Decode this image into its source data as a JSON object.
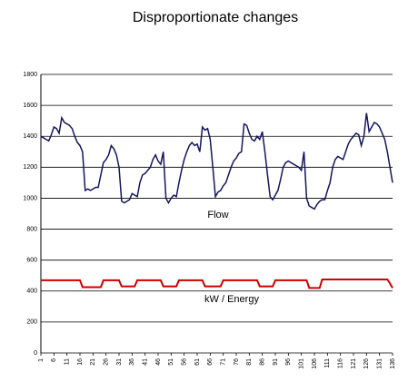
{
  "chart_data": {
    "type": "line",
    "title": "Disproportionate changes",
    "x": [
      1,
      2,
      3,
      4,
      5,
      6,
      7,
      8,
      9,
      10,
      11,
      12,
      13,
      14,
      15,
      16,
      17,
      18,
      19,
      20,
      21,
      22,
      23,
      24,
      25,
      26,
      27,
      28,
      29,
      30,
      31,
      32,
      33,
      34,
      35,
      36,
      37,
      38,
      39,
      40,
      41,
      42,
      43,
      44,
      45,
      46,
      47,
      48,
      49,
      50,
      51,
      52,
      53,
      54,
      55,
      56,
      57,
      58,
      59,
      60,
      61,
      62,
      63,
      64,
      65,
      66,
      67,
      68,
      69,
      70,
      71,
      72,
      73,
      74,
      75,
      76,
      77,
      78,
      79,
      80,
      81,
      82,
      83,
      84,
      85,
      86,
      87,
      88,
      89,
      90,
      91,
      92,
      93,
      94,
      95,
      96,
      97,
      98,
      99,
      100,
      101,
      102,
      103,
      104,
      105,
      106,
      107,
      108,
      109,
      110,
      111,
      112,
      113,
      114,
      115,
      116,
      117,
      118,
      119,
      120,
      121,
      122,
      123,
      124,
      125,
      126,
      127,
      128,
      129,
      130,
      131,
      132,
      133,
      134,
      135,
      136
    ],
    "series": [
      {
        "name": "Flow",
        "color": "#14165e",
        "values": [
          1400,
          1390,
          1380,
          1370,
          1410,
          1460,
          1450,
          1420,
          1520,
          1490,
          1480,
          1470,
          1450,
          1400,
          1360,
          1340,
          1300,
          1050,
          1060,
          1050,
          1060,
          1070,
          1070,
          1150,
          1230,
          1250,
          1280,
          1340,
          1320,
          1280,
          1200,
          980,
          970,
          980,
          990,
          1030,
          1020,
          1010,
          1100,
          1150,
          1160,
          1180,
          1200,
          1250,
          1280,
          1240,
          1220,
          1300,
          1000,
          970,
          1000,
          1020,
          1010,
          1100,
          1180,
          1250,
          1300,
          1340,
          1360,
          1340,
          1350,
          1300,
          1460,
          1440,
          1450,
          1380,
          1200,
          1010,
          1040,
          1050,
          1080,
          1100,
          1150,
          1200,
          1240,
          1260,
          1290,
          1300,
          1480,
          1470,
          1420,
          1380,
          1370,
          1400,
          1380,
          1430,
          1300,
          1150,
          1010,
          990,
          1020,
          1050,
          1120,
          1200,
          1230,
          1240,
          1230,
          1220,
          1210,
          1200,
          1180,
          1300,
          1000,
          950,
          940,
          930,
          960,
          980,
          990,
          990,
          1050,
          1100,
          1200,
          1250,
          1270,
          1260,
          1250,
          1300,
          1350,
          1380,
          1400,
          1420,
          1410,
          1340,
          1400,
          1550,
          1430,
          1460,
          1490,
          1480,
          1460,
          1420,
          1380,
          1300,
          1200,
          1100
        ]
      },
      {
        "name": "kW / Energy",
        "color": "#cc0000",
        "values": [
          470,
          470,
          470,
          470,
          470,
          470,
          470,
          470,
          470,
          470,
          470,
          470,
          470,
          470,
          470,
          470,
          425,
          425,
          425,
          425,
          425,
          425,
          425,
          425,
          470,
          470,
          470,
          470,
          470,
          470,
          470,
          430,
          430,
          430,
          430,
          430,
          430,
          470,
          470,
          470,
          470,
          470,
          470,
          470,
          470,
          470,
          470,
          430,
          430,
          430,
          430,
          430,
          430,
          470,
          470,
          470,
          470,
          470,
          470,
          470,
          470,
          470,
          470,
          430,
          430,
          430,
          430,
          430,
          430,
          430,
          470,
          470,
          470,
          470,
          470,
          470,
          470,
          470,
          470,
          470,
          470,
          470,
          470,
          470,
          430,
          430,
          430,
          430,
          430,
          430,
          470,
          470,
          470,
          470,
          470,
          470,
          470,
          470,
          470,
          470,
          470,
          470,
          470,
          420,
          420,
          420,
          420,
          420,
          475,
          475,
          475,
          475,
          475,
          475,
          475,
          475,
          475,
          475,
          475,
          475,
          475,
          475,
          475,
          475,
          475,
          475,
          475,
          475,
          475,
          475,
          475,
          475,
          475,
          475,
          450,
          420
        ]
      }
    ],
    "xlim": [
      1,
      136
    ],
    "xticks": [
      1,
      6,
      11,
      16,
      21,
      26,
      31,
      36,
      41,
      46,
      51,
      56,
      61,
      66,
      71,
      76,
      81,
      86,
      91,
      96,
      101,
      106,
      111,
      116,
      121,
      126,
      131,
      136
    ],
    "ylim": [
      0,
      1800
    ],
    "yticks": [
      0,
      200,
      400,
      600,
      800,
      1000,
      1200,
      1400,
      1600,
      1800
    ],
    "grid": true
  }
}
